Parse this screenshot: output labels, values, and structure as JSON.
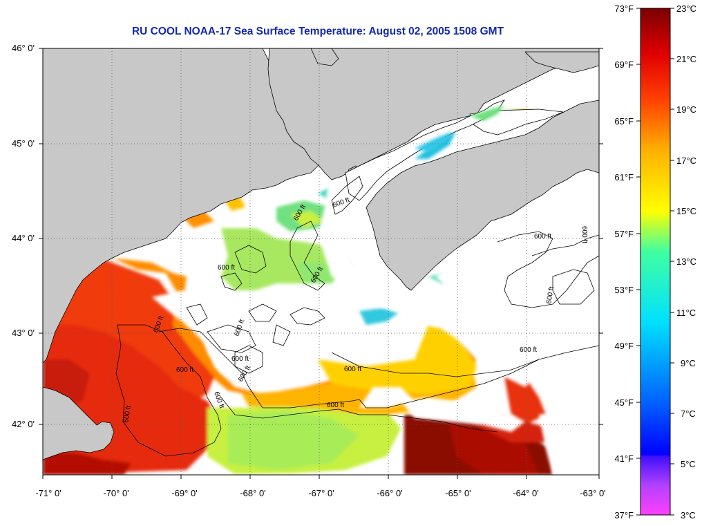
{
  "title": "RU COOL  NOAA-17  Sea Surface Temperature:  August 02, 2005 1508 GMT",
  "map": {
    "lat_labels": [
      "46° 0'",
      "45° 0'",
      "44° 0'",
      "43° 0'",
      "42° 0'"
    ],
    "lon_labels": [
      "-71° 0'",
      "-70° 0'",
      "-69° 0'",
      "-68° 0'",
      "-67° 0'",
      "-66° 0'",
      "-65° 0'",
      "-64° 0'",
      "-63° 0'"
    ],
    "lat_range": [
      41.5,
      46.0
    ],
    "lon_range": [
      -71,
      -63
    ],
    "contour_label": "600 ft",
    "colors": {
      "land": "#c8c8c8",
      "cloud": "#ffffff",
      "coast": "#000000"
    }
  },
  "colorbar": {
    "f_labels": [
      "73°F",
      "69°F",
      "65°F",
      "61°F",
      "57°F",
      "53°F",
      "49°F",
      "45°F",
      "41°F",
      "37°F"
    ],
    "c_labels": [
      "23°C",
      "21°C",
      "19°C",
      "17°C",
      "15°C",
      "13°C",
      "11°C",
      "9°C",
      "7°C",
      "5°C",
      "3°C"
    ],
    "f_range": [
      37,
      73
    ],
    "c_range": [
      3,
      23
    ]
  }
}
